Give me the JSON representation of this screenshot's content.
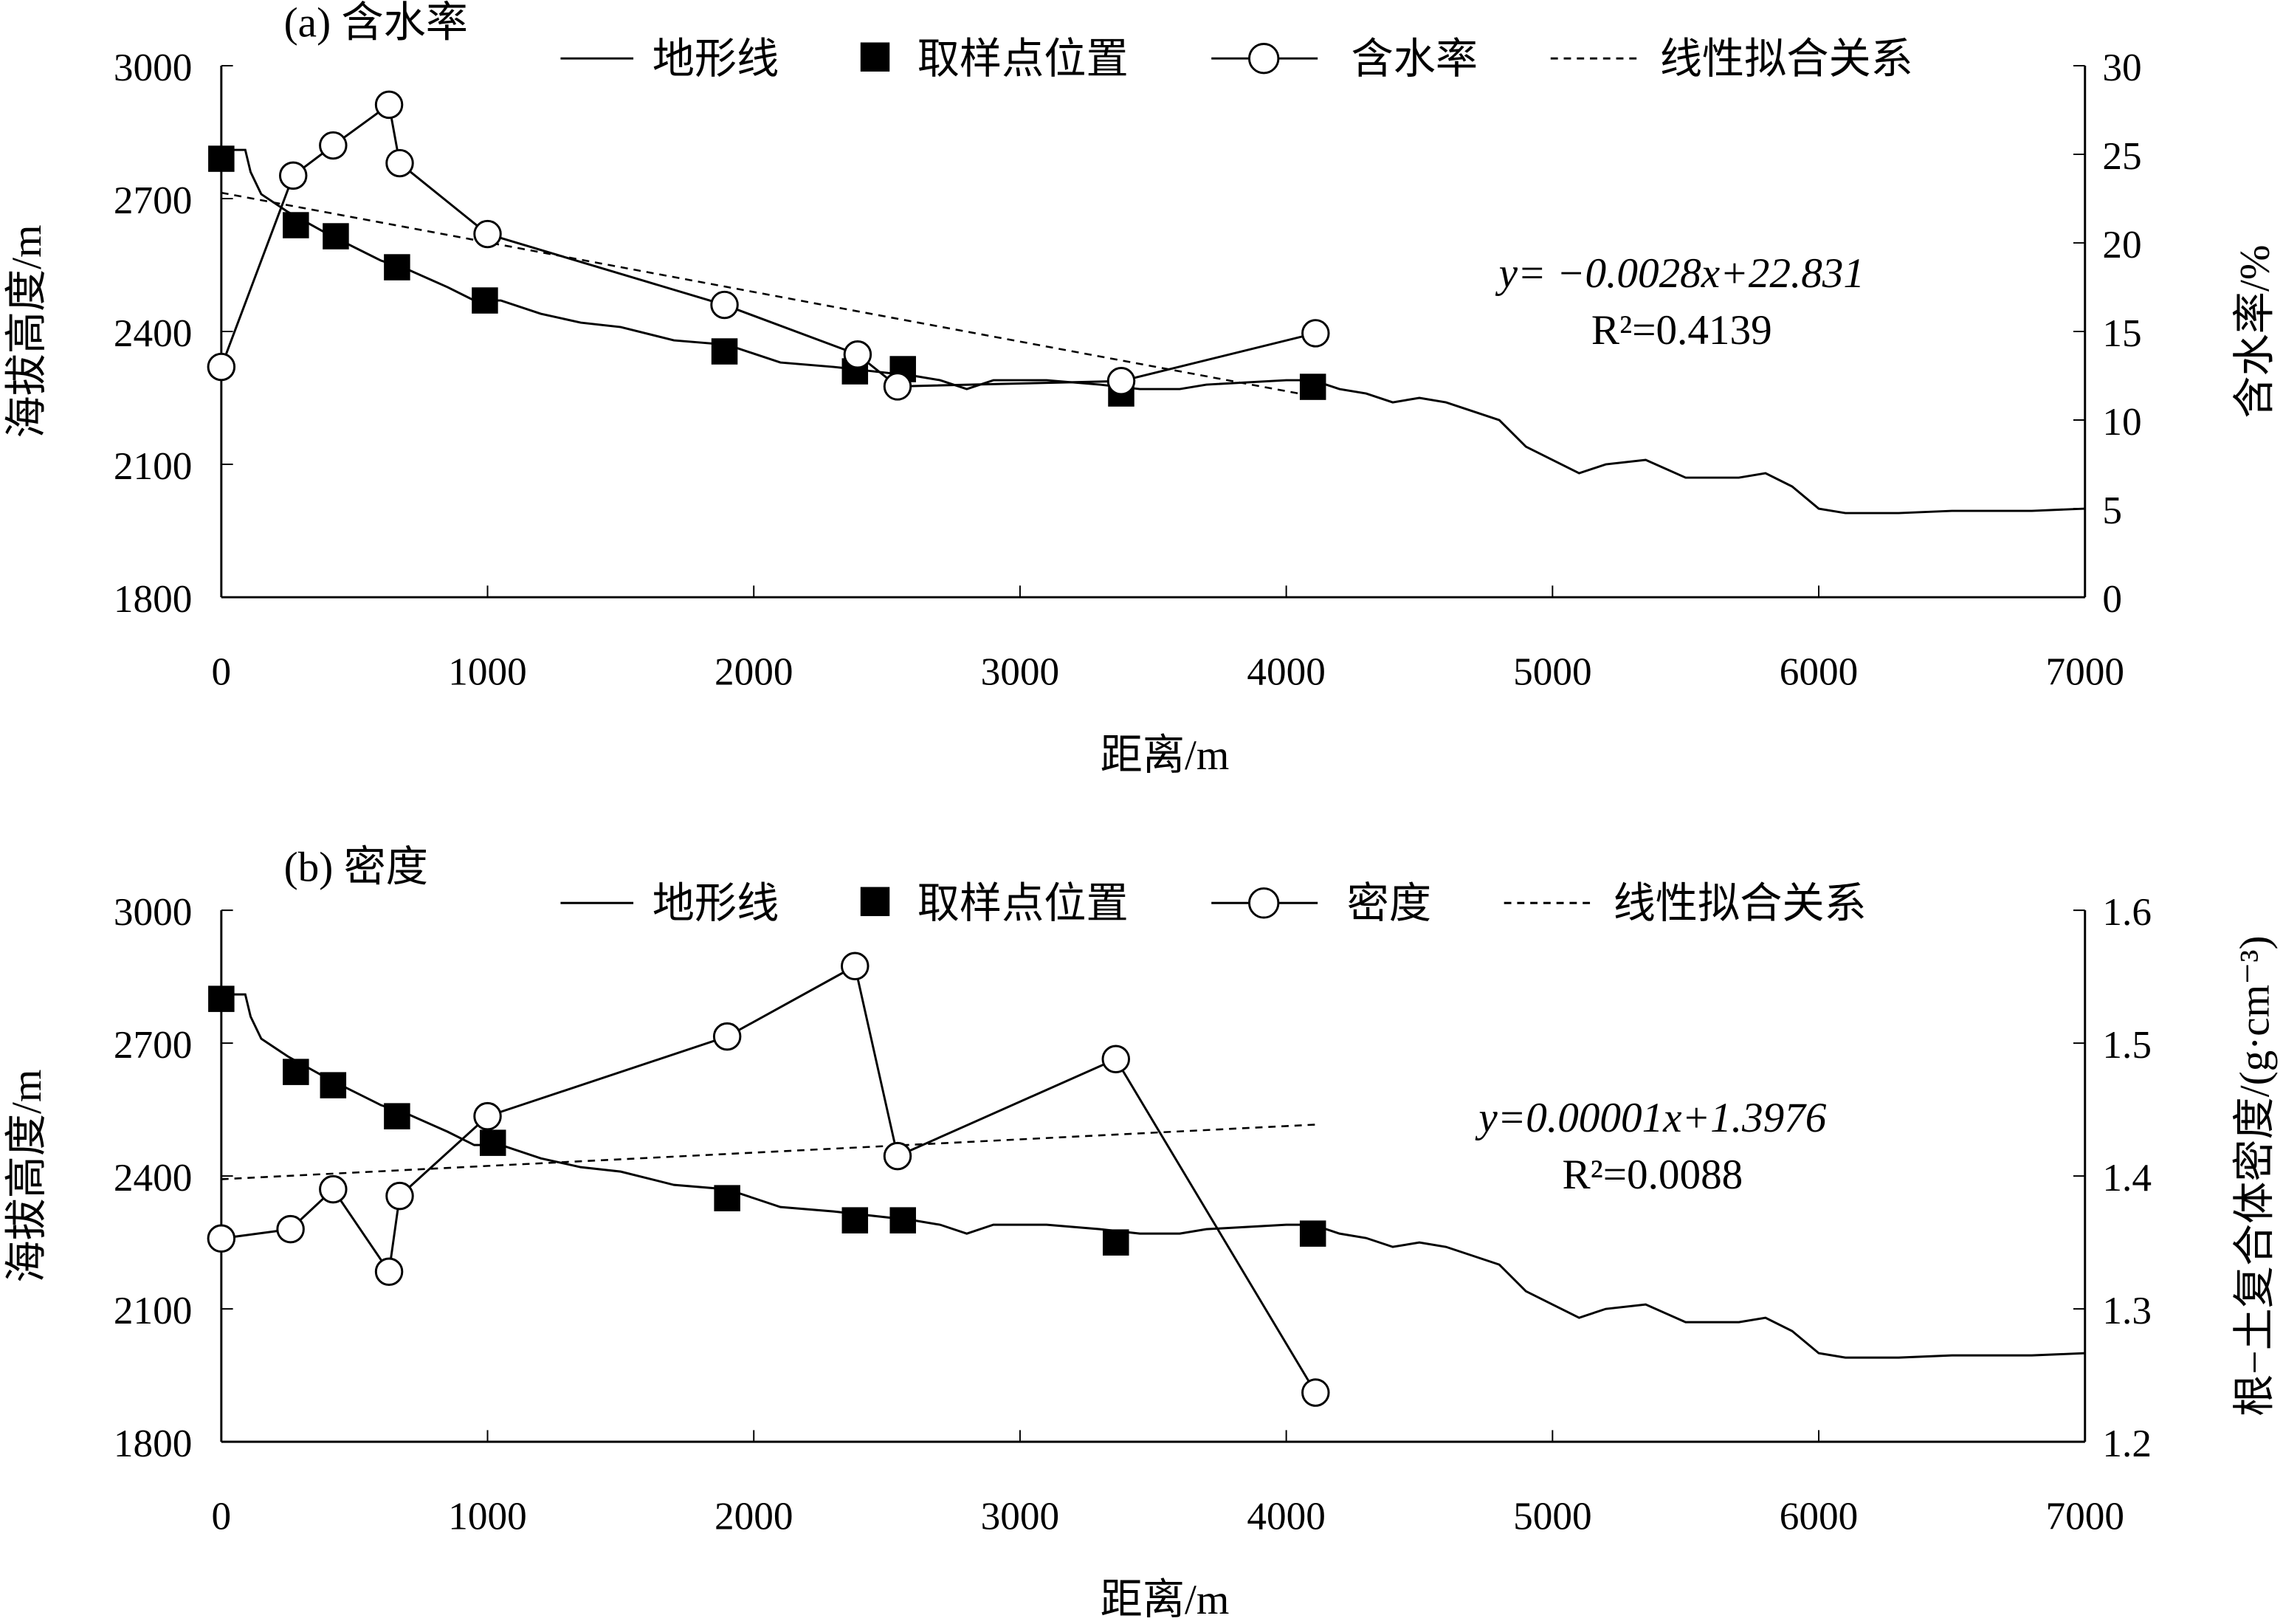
{
  "chart_data": [
    {
      "type": "line",
      "title": "(a) 含水率",
      "xlabel": "距离/m",
      "ylabel": "海拔高度/m",
      "ylabel_right": "含水率/%",
      "xlim": [
        0,
        7000
      ],
      "ylim": [
        1800,
        3000
      ],
      "ylim_right": [
        0,
        30
      ],
      "xticks": [
        0,
        1000,
        2000,
        3000,
        4000,
        5000,
        6000,
        7000
      ],
      "yticks": [
        1800,
        2100,
        2400,
        2700,
        3000
      ],
      "yticks_right": [
        0,
        5,
        10,
        15,
        20,
        25,
        30
      ],
      "legend": [
        "地形线",
        "取样点位置",
        "含水率",
        "线性拟合关系"
      ],
      "legend_position": "top",
      "equation": "y= −0.0028x+22.831",
      "r2": "R²=0.4139",
      "terrain": [
        [
          0,
          2810
        ],
        [
          90,
          2810
        ],
        [
          110,
          2760
        ],
        [
          150,
          2710
        ],
        [
          250,
          2670
        ],
        [
          400,
          2620
        ],
        [
          600,
          2560
        ],
        [
          700,
          2540
        ],
        [
          850,
          2500
        ],
        [
          950,
          2470
        ],
        [
          1050,
          2470
        ],
        [
          1200,
          2440
        ],
        [
          1350,
          2420
        ],
        [
          1500,
          2410
        ],
        [
          1700,
          2380
        ],
        [
          1900,
          2370
        ],
        [
          2000,
          2350
        ],
        [
          2100,
          2330
        ],
        [
          2300,
          2320
        ],
        [
          2450,
          2310
        ],
        [
          2600,
          2300
        ],
        [
          2700,
          2290
        ],
        [
          2800,
          2270
        ],
        [
          2900,
          2290
        ],
        [
          3100,
          2290
        ],
        [
          3300,
          2280
        ],
        [
          3450,
          2270
        ],
        [
          3600,
          2270
        ],
        [
          3700,
          2280
        ],
        [
          4000,
          2290
        ],
        [
          4100,
          2290
        ],
        [
          4200,
          2270
        ],
        [
          4300,
          2260
        ],
        [
          4400,
          2240
        ],
        [
          4500,
          2250
        ],
        [
          4600,
          2240
        ],
        [
          4700,
          2220
        ],
        [
          4800,
          2200
        ],
        [
          4900,
          2140
        ],
        [
          5000,
          2110
        ],
        [
          5100,
          2080
        ],
        [
          5200,
          2100
        ],
        [
          5350,
          2110
        ],
        [
          5500,
          2070
        ],
        [
          5700,
          2070
        ],
        [
          5800,
          2080
        ],
        [
          5900,
          2050
        ],
        [
          6000,
          2000
        ],
        [
          6100,
          1990
        ],
        [
          6300,
          1990
        ],
        [
          6500,
          1995
        ],
        [
          6800,
          1995
        ],
        [
          7000,
          2000
        ]
      ],
      "samples": [
        [
          0,
          2790
        ],
        [
          280,
          2640
        ],
        [
          430,
          2615
        ],
        [
          660,
          2545
        ],
        [
          990,
          2470
        ],
        [
          1890,
          2355
        ],
        [
          2380,
          2310
        ],
        [
          2560,
          2315
        ],
        [
          3380,
          2260
        ],
        [
          4100,
          2275
        ]
      ],
      "measure": [
        [
          0,
          13.0
        ],
        [
          270,
          23.8
        ],
        [
          420,
          25.5
        ],
        [
          630,
          27.8
        ],
        [
          670,
          24.5
        ],
        [
          1000,
          20.5
        ],
        [
          1890,
          16.5
        ],
        [
          2390,
          13.7
        ],
        [
          2540,
          11.9
        ],
        [
          3380,
          12.2
        ],
        [
          4110,
          14.9
        ]
      ],
      "fit": {
        "slope": -0.0028,
        "intercept": 22.831,
        "x_range": [
          0,
          4110
        ]
      }
    },
    {
      "type": "line",
      "title": "(b) 密度",
      "xlabel": "距离/m",
      "ylabel": "海拔高度/m",
      "ylabel_right": "根−土复合体密度/(g·cm⁻³)",
      "xlim": [
        0,
        7000
      ],
      "ylim": [
        1800,
        3000
      ],
      "ylim_right": [
        1.2,
        1.6
      ],
      "xticks": [
        0,
        1000,
        2000,
        3000,
        4000,
        5000,
        6000,
        7000
      ],
      "yticks": [
        1800,
        2100,
        2400,
        2700,
        3000
      ],
      "yticks_right": [
        1.2,
        1.3,
        1.4,
        1.5,
        1.6
      ],
      "legend": [
        "地形线",
        "取样点位置",
        "密度",
        "线性拟合关系"
      ],
      "legend_position": "top",
      "equation": "y=0.00001x+1.3976",
      "r2": "R²=0.0088",
      "terrain": [
        [
          0,
          2810
        ],
        [
          90,
          2810
        ],
        [
          110,
          2760
        ],
        [
          150,
          2710
        ],
        [
          250,
          2670
        ],
        [
          400,
          2620
        ],
        [
          600,
          2560
        ],
        [
          700,
          2540
        ],
        [
          850,
          2500
        ],
        [
          950,
          2470
        ],
        [
          1050,
          2470
        ],
        [
          1200,
          2440
        ],
        [
          1350,
          2420
        ],
        [
          1500,
          2410
        ],
        [
          1700,
          2380
        ],
        [
          1900,
          2370
        ],
        [
          2000,
          2350
        ],
        [
          2100,
          2330
        ],
        [
          2300,
          2320
        ],
        [
          2450,
          2310
        ],
        [
          2600,
          2300
        ],
        [
          2700,
          2290
        ],
        [
          2800,
          2270
        ],
        [
          2900,
          2290
        ],
        [
          3100,
          2290
        ],
        [
          3300,
          2280
        ],
        [
          3450,
          2270
        ],
        [
          3600,
          2270
        ],
        [
          3700,
          2280
        ],
        [
          4000,
          2290
        ],
        [
          4100,
          2290
        ],
        [
          4200,
          2270
        ],
        [
          4300,
          2260
        ],
        [
          4400,
          2240
        ],
        [
          4500,
          2250
        ],
        [
          4600,
          2240
        ],
        [
          4700,
          2220
        ],
        [
          4800,
          2200
        ],
        [
          4900,
          2140
        ],
        [
          5000,
          2110
        ],
        [
          5100,
          2080
        ],
        [
          5200,
          2100
        ],
        [
          5350,
          2110
        ],
        [
          5500,
          2070
        ],
        [
          5700,
          2070
        ],
        [
          5800,
          2080
        ],
        [
          5900,
          2050
        ],
        [
          6000,
          2000
        ],
        [
          6100,
          1990
        ],
        [
          6300,
          1990
        ],
        [
          6500,
          1995
        ],
        [
          6800,
          1995
        ],
        [
          7000,
          2000
        ]
      ],
      "samples": [
        [
          0,
          2800
        ],
        [
          280,
          2635
        ],
        [
          420,
          2605
        ],
        [
          660,
          2535
        ],
        [
          1020,
          2475
        ],
        [
          1900,
          2350
        ],
        [
          2380,
          2300
        ],
        [
          2560,
          2300
        ],
        [
          3360,
          2250
        ],
        [
          4100,
          2270
        ]
      ],
      "measure": [
        [
          0,
          1.353
        ],
        [
          260,
          1.36
        ],
        [
          420,
          1.39
        ],
        [
          630,
          1.328
        ],
        [
          670,
          1.385
        ],
        [
          1000,
          1.445
        ],
        [
          1900,
          1.505
        ],
        [
          2380,
          1.558
        ],
        [
          2540,
          1.415
        ],
        [
          3360,
          1.488
        ],
        [
          4110,
          1.237
        ]
      ],
      "fit": {
        "slope": 1e-05,
        "intercept": 1.3976,
        "x_range": [
          0,
          4110
        ]
      }
    }
  ]
}
